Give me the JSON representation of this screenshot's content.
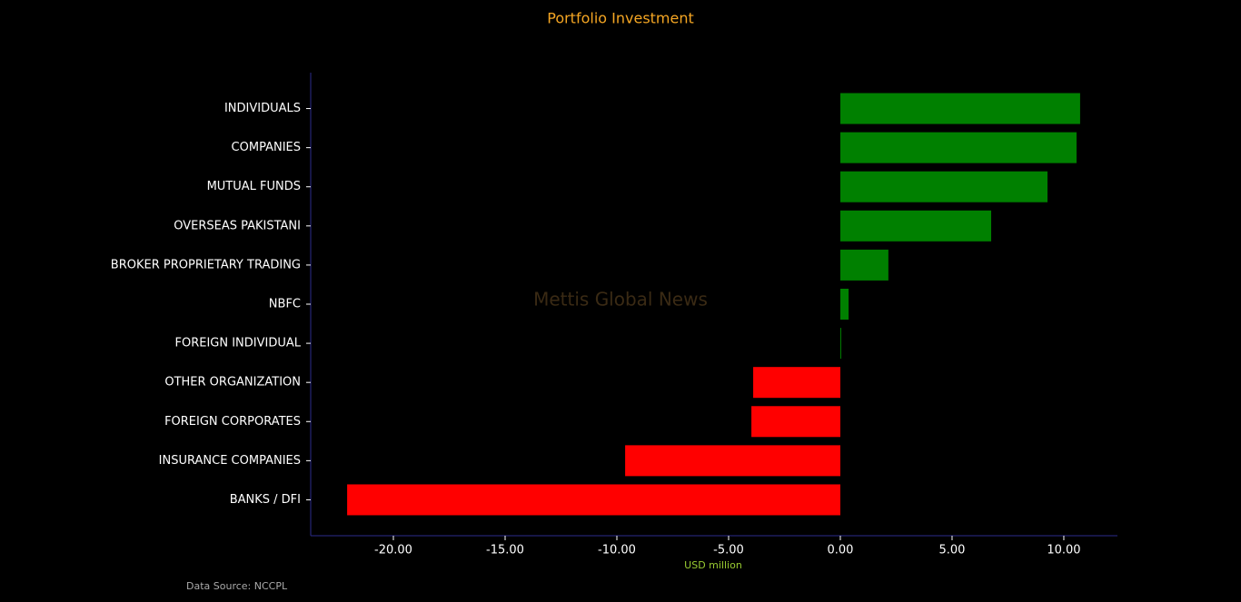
{
  "chart_data": {
    "type": "barh",
    "title": "Portfolio Investment",
    "watermark": "Mettis Global News",
    "xlabel": "USD million",
    "source": "Data Source: NCCPL",
    "categories": [
      "INDIVIDUALS",
      "COMPANIES",
      "MUTUAL FUNDS",
      "OVERSEAS PAKISTANI",
      "BROKER PROPRIETARY TRADING",
      "NBFC",
      "FOREIGN INDIVIDUAL",
      "OTHER ORGANIZATION",
      "FOREIGN CORPORATES",
      "INSURANCE COMPANIES",
      "BANKS / DFI"
    ],
    "values": [
      10.73,
      10.57,
      9.27,
      6.75,
      2.15,
      0.37,
      0.04,
      -3.9,
      -3.98,
      -9.63,
      -22.07
    ],
    "colors": [
      "#008000",
      "#008000",
      "#008000",
      "#008000",
      "#008000",
      "#008000",
      "#008000",
      "#ff0000",
      "#ff0000",
      "#ff0000",
      "#ff0000"
    ],
    "xlim": [
      -23.7,
      12.4
    ],
    "xticks": [
      {
        "value": -20,
        "label": "-20.00"
      },
      {
        "value": -15,
        "label": "-15.00"
      },
      {
        "value": -10,
        "label": "-10.00"
      },
      {
        "value": -5,
        "label": "-5.00"
      },
      {
        "value": 0,
        "label": "0.00"
      },
      {
        "value": 5,
        "label": "5.00"
      },
      {
        "value": 10,
        "label": "10.00"
      }
    ]
  }
}
